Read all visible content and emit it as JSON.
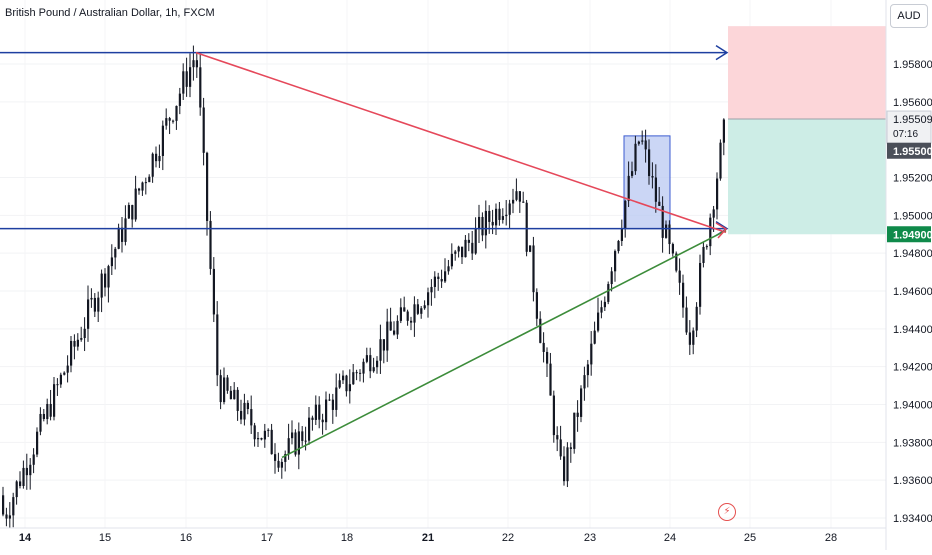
{
  "header": {
    "title": "British Pound / Australian Dollar, 1h, FXCM"
  },
  "axis": {
    "currency": "AUD",
    "countdown": "07:16"
  },
  "colors": {
    "candle": "#131722",
    "level_line": "#1e3fa0",
    "trend_down": "#e5485a",
    "trend_up": "#3c8c3a",
    "stop_zone": "#fcd6d9",
    "target_zone": "#cdede6",
    "highlight_box": "#b9c8f2",
    "highlight_border": "#3b5bd0",
    "badge_price": "#131722",
    "badge_last": "#4b4f59",
    "badge_entry": "#0f8a4a"
  },
  "chart_data": {
    "type": "candlestick",
    "symbol": "British Pound / Australian Dollar",
    "timeframe": "1h",
    "source": "FXCM",
    "x_tick_labels": [
      "14",
      "15",
      "16",
      "17",
      "18",
      "21",
      "22",
      "23",
      "24",
      "25",
      "28"
    ],
    "y_tick_labels": [
      "1.95800",
      "1.95600",
      "1.95200",
      "1.95000",
      "1.94800",
      "1.94600",
      "1.94400",
      "1.94200",
      "1.94000",
      "1.93800",
      "1.93600",
      "1.93400"
    ],
    "ylim": [
      1.9338,
      1.96
    ],
    "price_tags": [
      {
        "label": "1.95509",
        "value": 1.95509,
        "kind": "current"
      },
      {
        "label": "1.95500",
        "value": 1.955,
        "kind": "level"
      },
      {
        "label": "1.94900",
        "value": 1.949,
        "kind": "entry"
      }
    ],
    "key_points": [
      {
        "time": "14",
        "price": 1.9342
      },
      {
        "time": "16",
        "price": 1.9586
      },
      {
        "time": "16",
        "price": 1.941
      },
      {
        "time": "17",
        "price": 1.9372
      },
      {
        "time": "21",
        "price": 1.9516
      },
      {
        "time": "22",
        "price": 1.936
      },
      {
        "time": "23",
        "price": 1.9542
      },
      {
        "time": "24",
        "price": 1.9437
      },
      {
        "time": "24",
        "price": 1.955
      }
    ],
    "horizontal_levels": [
      1.9586,
      1.9493
    ],
    "trendlines": [
      {
        "from": 1.9586,
        "to": 1.9491,
        "color": "red"
      },
      {
        "from": 1.9372,
        "to": 1.9492,
        "color": "green"
      }
    ],
    "position_zones": {
      "stop_top": 1.96,
      "entry": 1.95509,
      "target": 1.949
    },
    "grid": true
  }
}
